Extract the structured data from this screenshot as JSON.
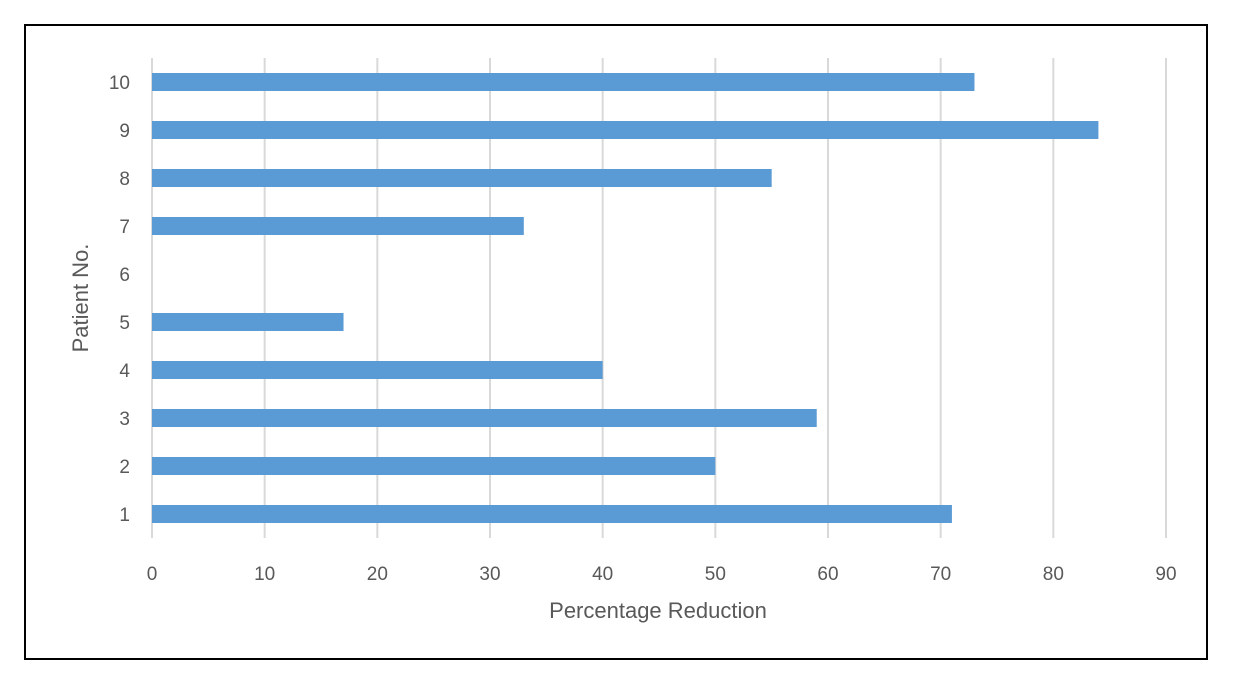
{
  "chart_data": {
    "type": "bar",
    "orientation": "horizontal",
    "categories": [
      "1",
      "2",
      "3",
      "4",
      "5",
      "6",
      "7",
      "8",
      "9",
      "10"
    ],
    "values": [
      71,
      50,
      59,
      40,
      17,
      null,
      33,
      55,
      84,
      73
    ],
    "xlabel": "Percentage Reduction",
    "ylabel": "Patient No.",
    "xlim": [
      0,
      90
    ],
    "x_ticks": [
      "0",
      "10",
      "20",
      "30",
      "40",
      "50",
      "60",
      "70",
      "80",
      "90"
    ],
    "grid": "vertical",
    "legend": "none",
    "bar_color": "#5B9BD5",
    "grid_color": "#D9D9D9"
  }
}
